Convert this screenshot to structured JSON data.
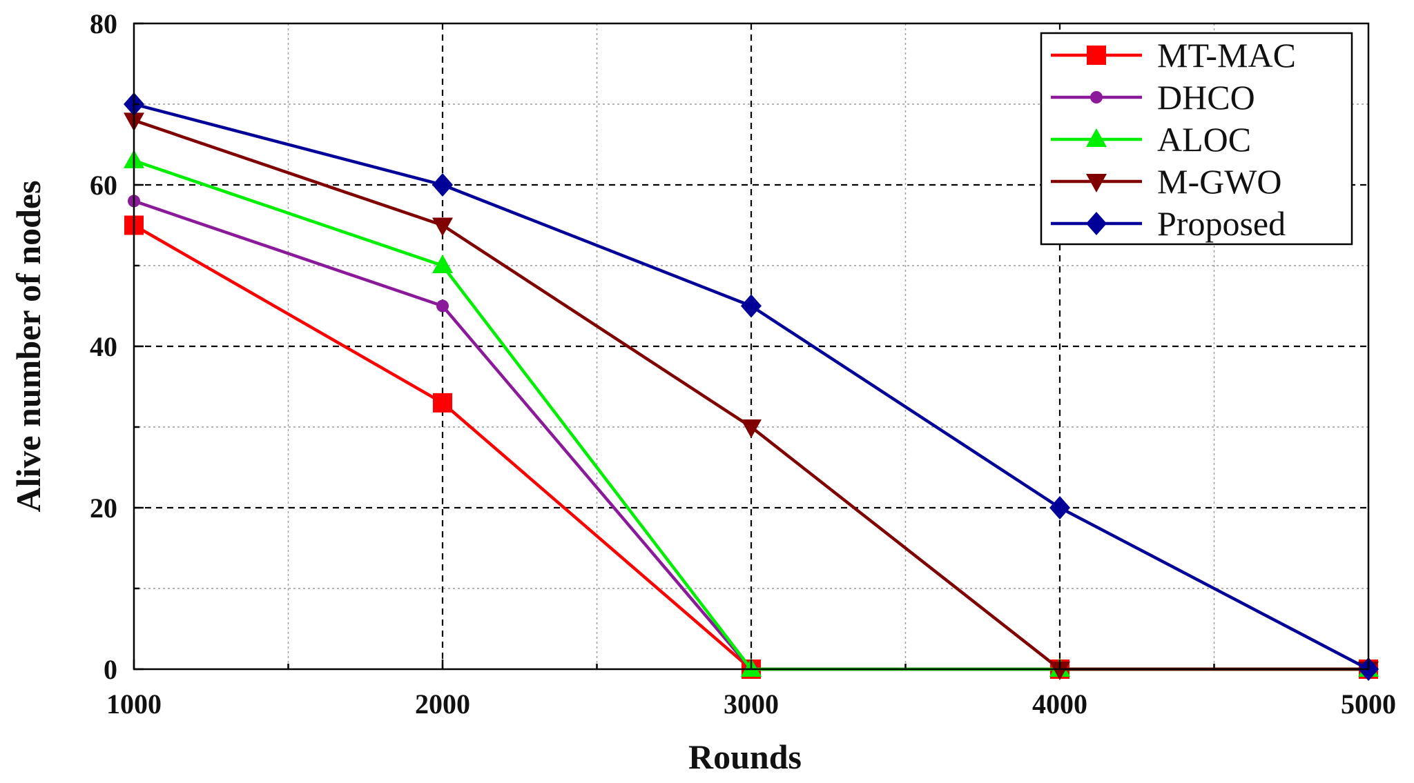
{
  "chart_data": {
    "type": "line",
    "title": "",
    "xlabel": "Rounds",
    "ylabel": "Alive number of nodes",
    "x": [
      1000,
      2000,
      3000,
      4000,
      5000
    ],
    "xlim": [
      1000,
      5000
    ],
    "ylim": [
      0,
      80
    ],
    "x_ticks": [
      "1000",
      "2000",
      "3000",
      "4000",
      "5000"
    ],
    "y_ticks": [
      "0",
      "20",
      "40",
      "60",
      "80"
    ],
    "grid": true,
    "legend_position": "top-right",
    "series": [
      {
        "name": "MT-MAC",
        "color": "#ff0000",
        "marker": "square",
        "values": [
          55,
          33,
          0,
          0,
          0
        ]
      },
      {
        "name": "DHCO",
        "color": "#8b1a9b",
        "marker": "circle",
        "values": [
          58,
          45,
          0,
          0,
          0
        ]
      },
      {
        "name": "ALOC",
        "color": "#00ee00",
        "marker": "triangle-up",
        "values": [
          63,
          50,
          0,
          0,
          0
        ]
      },
      {
        "name": "M-GWO",
        "color": "#800000",
        "marker": "triangle-down",
        "values": [
          68,
          55,
          30,
          0,
          0
        ]
      },
      {
        "name": "Proposed",
        "color": "#000099",
        "marker": "diamond",
        "values": [
          70,
          60,
          45,
          20,
          0
        ]
      }
    ]
  }
}
